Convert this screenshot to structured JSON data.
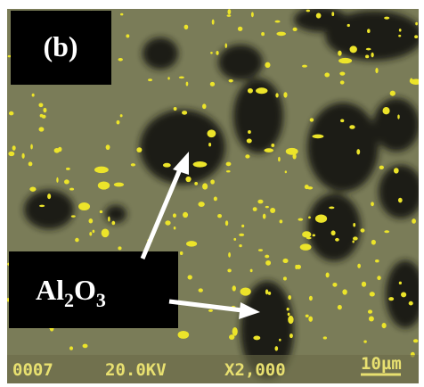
{
  "panel_label": "(b)",
  "annotation": {
    "element": "Al",
    "sub1": "2",
    "element2": "O",
    "sub2": "3"
  },
  "info_bar": [
    "0007",
    "20.0KV",
    "X2,000",
    "10µm"
  ]
}
